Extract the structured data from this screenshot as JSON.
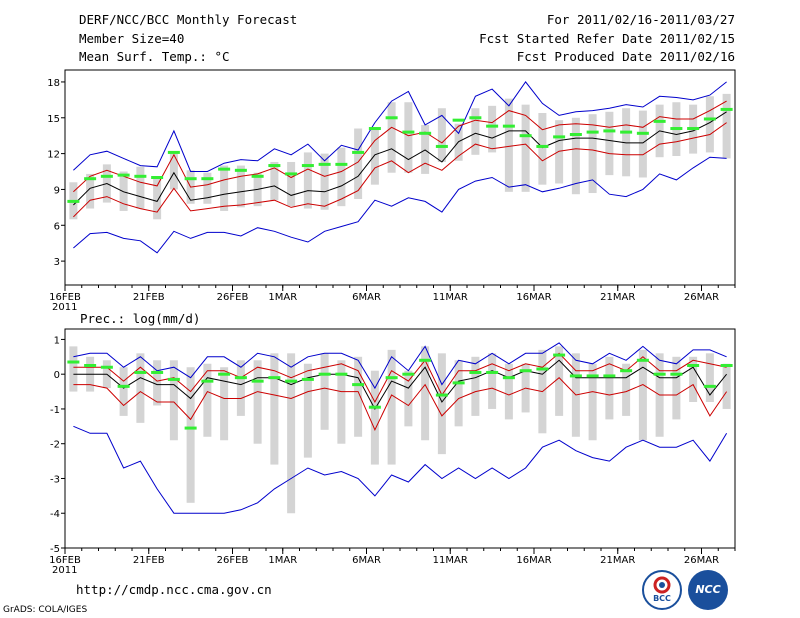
{
  "header": {
    "title": "DERF/NCC/BCC Monthly Forecast",
    "member_size": "Member Size=40",
    "variable1": "Mean Surf. Temp.: °C",
    "for_range": "For 2011/02/16-2011/03/27",
    "fcst_refer": "Fcst Started Refer Date 2011/02/15",
    "fcst_produced": "Fcst Produced Date 2011/02/16"
  },
  "variable2": "Prec.: log(mm/d)",
  "footer": {
    "url": "http://cmdp.ncc.cma.gov.cn",
    "grads": "GrADS: COLA/IGES",
    "logo_bcc": "BCC",
    "logo_ncc": "NCC"
  },
  "colors": {
    "max_min": "#0000cc",
    "spread": "#cc0000",
    "mean": "#000000",
    "box": "#d4d4d4",
    "median": "#33ee33",
    "ncc_blue": "#1a4f9c"
  },
  "chart_data": [
    {
      "type": "line",
      "title": "Mean Surf. Temp.: °C",
      "xlabel": "",
      "ylabel": "",
      "ylim": [
        1,
        19
      ],
      "yticks": [
        3,
        6,
        9,
        12,
        15,
        18
      ],
      "xlim": [
        16,
        56
      ],
      "xticks": [
        {
          "day": 16,
          "label": "16FEB"
        },
        {
          "day": 21,
          "label": "21FEB"
        },
        {
          "day": 26,
          "label": "26FEB"
        },
        {
          "day": 29,
          "label": "1MAR"
        },
        {
          "day": 34,
          "label": "6MAR"
        },
        {
          "day": 39,
          "label": "11MAR"
        },
        {
          "day": 44,
          "label": "16MAR"
        },
        {
          "day": 49,
          "label": "21MAR"
        },
        {
          "day": 54,
          "label": "26MAR"
        }
      ],
      "year_label": "2011",
      "x": [
        16,
        17,
        18,
        19,
        20,
        21,
        22,
        23,
        24,
        25,
        26,
        27,
        28,
        29,
        30,
        31,
        32,
        33,
        34,
        35,
        36,
        37,
        38,
        39,
        40,
        41,
        42,
        43,
        44,
        45,
        46,
        47,
        48,
        49,
        50,
        51,
        52,
        53,
        54,
        55
      ],
      "series": [
        {
          "name": "max",
          "values": [
            10.6,
            11.9,
            12.2,
            11.6,
            11.0,
            10.9,
            13.9,
            10.5,
            10.5,
            11.2,
            11.5,
            11.4,
            12.4,
            11.9,
            12.8,
            11.4,
            12.7,
            12.3,
            14.6,
            16.4,
            17.2,
            14.4,
            15.2,
            13.7,
            16.8,
            17.4,
            16.0,
            18.0,
            16.2,
            15.2,
            15.5,
            15.6,
            15.8,
            16.1,
            15.9,
            16.8,
            16.7,
            16.5,
            16.9,
            18.0
          ]
        },
        {
          "name": "upper",
          "values": [
            8.8,
            10.1,
            10.6,
            10.1,
            9.6,
            9.3,
            11.9,
            9.2,
            9.4,
            9.8,
            10.1,
            10.3,
            10.8,
            10.0,
            10.7,
            10.1,
            10.5,
            11.3,
            13.1,
            14.2,
            13.5,
            13.8,
            12.9,
            14.3,
            14.8,
            14.6,
            15.6,
            15.2,
            14.0,
            14.4,
            14.5,
            14.4,
            14.2,
            14.4,
            14.2,
            15.1,
            14.9,
            14.9,
            15.6,
            16.4
          ]
        },
        {
          "name": "mean",
          "values": [
            7.7,
            9.1,
            9.5,
            8.8,
            8.4,
            8.0,
            10.4,
            8.1,
            8.3,
            8.6,
            8.8,
            9.0,
            9.3,
            8.5,
            8.9,
            8.8,
            9.3,
            10.1,
            11.9,
            12.4,
            11.5,
            12.3,
            11.3,
            13.0,
            13.7,
            13.3,
            13.9,
            13.9,
            12.5,
            13.1,
            13.3,
            13.3,
            13.1,
            12.9,
            12.9,
            13.9,
            13.6,
            13.9,
            14.6,
            15.5
          ]
        },
        {
          "name": "lower",
          "values": [
            6.7,
            8.1,
            8.4,
            7.8,
            7.4,
            7.1,
            9.1,
            7.2,
            7.4,
            7.6,
            7.7,
            7.9,
            8.1,
            7.5,
            7.8,
            7.6,
            8.2,
            8.9,
            10.8,
            11.4,
            10.4,
            11.2,
            10.6,
            11.8,
            12.8,
            12.4,
            12.6,
            12.8,
            11.4,
            12.2,
            12.4,
            12.3,
            12.0,
            11.9,
            11.9,
            12.8,
            13.0,
            13.3,
            13.6,
            14.6
          ]
        },
        {
          "name": "min",
          "values": [
            4.1,
            5.3,
            5.4,
            4.9,
            4.7,
            3.7,
            5.5,
            4.9,
            5.4,
            5.4,
            5.1,
            5.8,
            5.5,
            5.0,
            4.6,
            5.5,
            5.9,
            6.3,
            8.1,
            7.6,
            8.3,
            8.0,
            7.1,
            9.0,
            9.7,
            10.0,
            9.2,
            9.4,
            8.8,
            9.1,
            9.5,
            9.8,
            8.6,
            8.4,
            9.0,
            10.3,
            9.8,
            10.8,
            11.7,
            11.6
          ]
        },
        {
          "name": "box_low",
          "values": [
            6.5,
            7.4,
            7.9,
            7.2,
            7.4,
            6.5,
            9.0,
            7.8,
            7.8,
            7.2,
            7.5,
            7.6,
            8.1,
            7.6,
            7.4,
            7.3,
            7.6,
            8.2,
            9.4,
            10.4,
            10.4,
            10.3,
            11.3,
            11.4,
            11.9,
            12.1,
            8.8,
            8.8,
            9.4,
            9.5,
            8.6,
            8.7,
            10.2,
            10.1,
            10.0,
            11.7,
            11.8,
            12.0,
            12.1,
            11.6
          ]
        },
        {
          "name": "box_high",
          "values": [
            9.6,
            10.3,
            11.1,
            10.5,
            10.9,
            9.9,
            12.0,
            10.6,
            10.4,
            11.0,
            11.0,
            10.4,
            11.3,
            11.3,
            12.1,
            12.0,
            12.5,
            14.1,
            14.2,
            16.3,
            16.3,
            14.4,
            15.8,
            14.5,
            15.8,
            16.0,
            16.6,
            16.1,
            15.4,
            14.8,
            15.0,
            15.3,
            15.5,
            15.8,
            15.6,
            16.1,
            16.3,
            16.1,
            16.8,
            17.0
          ]
        },
        {
          "name": "median",
          "values": [
            8.0,
            9.9,
            10.1,
            10.2,
            10.1,
            10.0,
            12.1,
            9.9,
            9.9,
            10.7,
            10.6,
            10.1,
            11.0,
            10.3,
            11.0,
            11.1,
            11.1,
            12.1,
            14.1,
            15.0,
            13.8,
            13.7,
            12.6,
            14.8,
            15.0,
            14.3,
            14.3,
            13.5,
            12.6,
            13.4,
            13.6,
            13.8,
            13.9,
            13.8,
            13.7,
            14.7,
            14.1,
            14.1,
            14.9,
            15.7
          ]
        }
      ]
    },
    {
      "type": "line",
      "title": "Prec.: log(mm/d)",
      "xlabel": "",
      "ylabel": "",
      "ylim": [
        -5,
        1.3
      ],
      "yticks": [
        -5,
        -4,
        -3,
        -2,
        -1,
        0,
        1
      ],
      "xlim": [
        16,
        56
      ],
      "xticks": [
        {
          "day": 16,
          "label": "16FEB"
        },
        {
          "day": 21,
          "label": "21FEB"
        },
        {
          "day": 26,
          "label": "26FEB"
        },
        {
          "day": 29,
          "label": "1MAR"
        },
        {
          "day": 34,
          "label": "6MAR"
        },
        {
          "day": 39,
          "label": "11MAR"
        },
        {
          "day": 44,
          "label": "16MAR"
        },
        {
          "day": 49,
          "label": "21MAR"
        },
        {
          "day": 54,
          "label": "26MAR"
        }
      ],
      "year_label": "2011",
      "x": [
        16,
        17,
        18,
        19,
        20,
        21,
        22,
        23,
        24,
        25,
        26,
        27,
        28,
        29,
        30,
        31,
        32,
        33,
        34,
        35,
        36,
        37,
        38,
        39,
        40,
        41,
        42,
        43,
        44,
        45,
        46,
        47,
        48,
        49,
        50,
        51,
        52,
        53,
        54,
        55
      ],
      "series": [
        {
          "name": "max",
          "values": [
            0.5,
            0.6,
            0.6,
            0.2,
            0.5,
            0.1,
            0.2,
            -0.1,
            0.5,
            0.5,
            0.2,
            0.6,
            0.5,
            0.2,
            0.5,
            0.6,
            0.6,
            0.4,
            -0.4,
            0.5,
            0.1,
            0.8,
            -0.3,
            0.4,
            0.3,
            0.6,
            0.3,
            0.6,
            0.6,
            0.9,
            0.4,
            0.3,
            0.6,
            0.4,
            0.8,
            0.4,
            0.3,
            0.7,
            0.7,
            0.5
          ]
        },
        {
          "name": "upper",
          "values": [
            0.2,
            0.2,
            0.2,
            -0.2,
            0.2,
            -0.2,
            -0.1,
            -0.5,
            0.1,
            0.1,
            -0.1,
            0.2,
            0.1,
            -0.1,
            0.1,
            0.2,
            0.3,
            0.1,
            -0.8,
            0.1,
            -0.2,
            0.4,
            -0.6,
            0.1,
            0.1,
            0.3,
            0.1,
            0.3,
            0.2,
            0.6,
            0.1,
            0.1,
            0.3,
            0.1,
            0.5,
            0.1,
            0.1,
            0.4,
            0.3,
            0.2
          ]
        },
        {
          "name": "mean",
          "values": [
            0.0,
            0.0,
            0.0,
            -0.4,
            -0.1,
            -0.3,
            -0.3,
            -0.7,
            -0.1,
            -0.2,
            -0.3,
            -0.1,
            -0.1,
            -0.3,
            -0.1,
            0.0,
            0.0,
            -0.1,
            -1.0,
            -0.2,
            -0.4,
            0.2,
            -0.8,
            -0.2,
            -0.1,
            0.1,
            -0.1,
            0.1,
            0.0,
            0.4,
            -0.1,
            -0.1,
            -0.1,
            -0.1,
            0.2,
            -0.1,
            -0.1,
            0.2,
            -0.6,
            0.0
          ]
        },
        {
          "name": "lower",
          "values": [
            -0.3,
            -0.3,
            -0.4,
            -0.9,
            -0.5,
            -0.8,
            -0.8,
            -1.3,
            -0.5,
            -0.7,
            -0.7,
            -0.5,
            -0.6,
            -0.7,
            -0.5,
            -0.4,
            -0.5,
            -0.5,
            -1.6,
            -0.6,
            -0.9,
            -0.3,
            -1.2,
            -0.7,
            -0.5,
            -0.4,
            -0.6,
            -0.4,
            -0.5,
            -0.1,
            -0.6,
            -0.5,
            -0.6,
            -0.5,
            -0.3,
            -0.6,
            -0.6,
            -0.3,
            -1.2,
            -0.5
          ]
        },
        {
          "name": "min",
          "values": [
            -1.5,
            -1.7,
            -1.7,
            -2.7,
            -2.5,
            -3.3,
            -4.0,
            -4.0,
            -4.0,
            -4.0,
            -3.9,
            -3.7,
            -3.3,
            -3.0,
            -2.7,
            -2.9,
            -2.8,
            -3.0,
            -3.5,
            -2.9,
            -3.1,
            -2.6,
            -3.0,
            -2.7,
            -3.0,
            -2.7,
            -3.0,
            -2.7,
            -2.1,
            -1.9,
            -2.2,
            -2.4,
            -2.5,
            -2.1,
            -1.9,
            -2.1,
            -2.1,
            -1.9,
            -2.5,
            -1.7
          ]
        },
        {
          "name": "box_low",
          "values": [
            -0.5,
            -0.5,
            -0.4,
            -1.2,
            -1.4,
            -0.9,
            -1.9,
            -3.7,
            -1.8,
            -1.9,
            -1.2,
            -2.0,
            -2.6,
            -4.0,
            -2.4,
            -1.6,
            -2.0,
            -1.8,
            -2.6,
            -2.6,
            -1.5,
            -1.9,
            -2.3,
            -1.5,
            -1.2,
            -1.0,
            -1.3,
            -1.1,
            -1.7,
            -1.2,
            -1.8,
            -1.9,
            -1.3,
            -1.2,
            -1.9,
            -1.8,
            -1.3,
            -0.8,
            -0.8,
            -1.0
          ]
        },
        {
          "name": "box_high",
          "values": [
            0.8,
            0.5,
            0.4,
            0.2,
            0.6,
            0.4,
            0.4,
            0.2,
            0.3,
            0.2,
            0.4,
            0.4,
            0.6,
            0.6,
            0.3,
            0.6,
            0.4,
            0.5,
            0.1,
            0.7,
            0.1,
            0.8,
            0.6,
            0.4,
            0.5,
            0.6,
            0.3,
            0.3,
            0.7,
            0.8,
            0.6,
            0.3,
            0.5,
            0.3,
            0.7,
            0.6,
            0.5,
            0.5,
            0.6,
            0.3
          ]
        },
        {
          "name": "median",
          "values": [
            0.35,
            0.25,
            0.2,
            -0.35,
            0.05,
            0.05,
            -0.15,
            -1.55,
            -0.2,
            0.0,
            -0.1,
            -0.2,
            -0.1,
            -0.2,
            -0.15,
            0.0,
            0.0,
            -0.3,
            -0.95,
            -0.1,
            0.0,
            0.4,
            -0.6,
            -0.25,
            0.05,
            0.05,
            -0.1,
            0.1,
            0.15,
            0.55,
            -0.05,
            -0.05,
            -0.05,
            0.1,
            0.4,
            0.0,
            0.0,
            0.25,
            -0.35,
            0.25
          ]
        }
      ]
    }
  ]
}
